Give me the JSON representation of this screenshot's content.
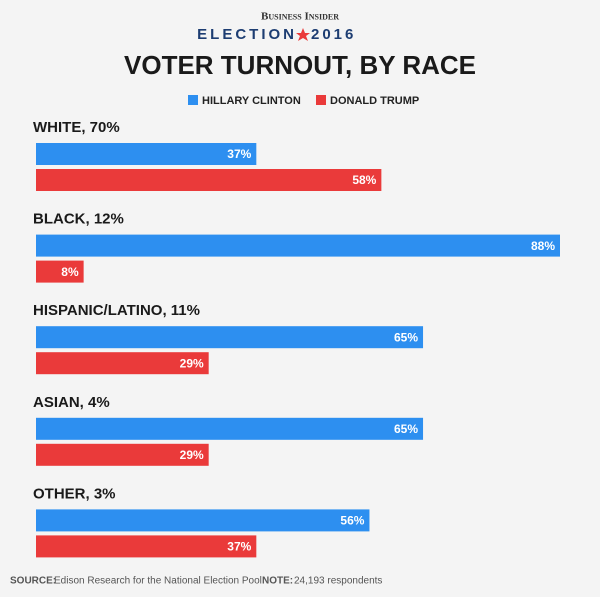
{
  "chart_data": {
    "type": "bar",
    "brand": "Business Insider",
    "election": "ELECTION",
    "year": "2016",
    "title": "VOTER TURNOUT, BY RACE",
    "categories": [
      "WHITE, 70%",
      "BLACK, 12%",
      "HISPANIC/LATINO, 11%",
      "ASIAN, 4%",
      "OTHER, 3%"
    ],
    "series": [
      {
        "name": "HILLARY CLINTON",
        "color": "#2d8ff0",
        "values": [
          37,
          88,
          65,
          65,
          56
        ],
        "value_labels": [
          "37%",
          "88%",
          "65%",
          "65%",
          "56%"
        ]
      },
      {
        "name": "DONALD TRUMP",
        "color": "#ea3a3a",
        "values": [
          58,
          8,
          29,
          29,
          37
        ],
        "value_labels": [
          "58%",
          "8%",
          "29%",
          "29%",
          "37%"
        ]
      }
    ],
    "xlim": [
      0,
      88
    ],
    "source_label": "SOURCE:",
    "source": "Edison Research for the National Election Pool",
    "note_label": "NOTE:",
    "note": "24,193 respondents"
  }
}
